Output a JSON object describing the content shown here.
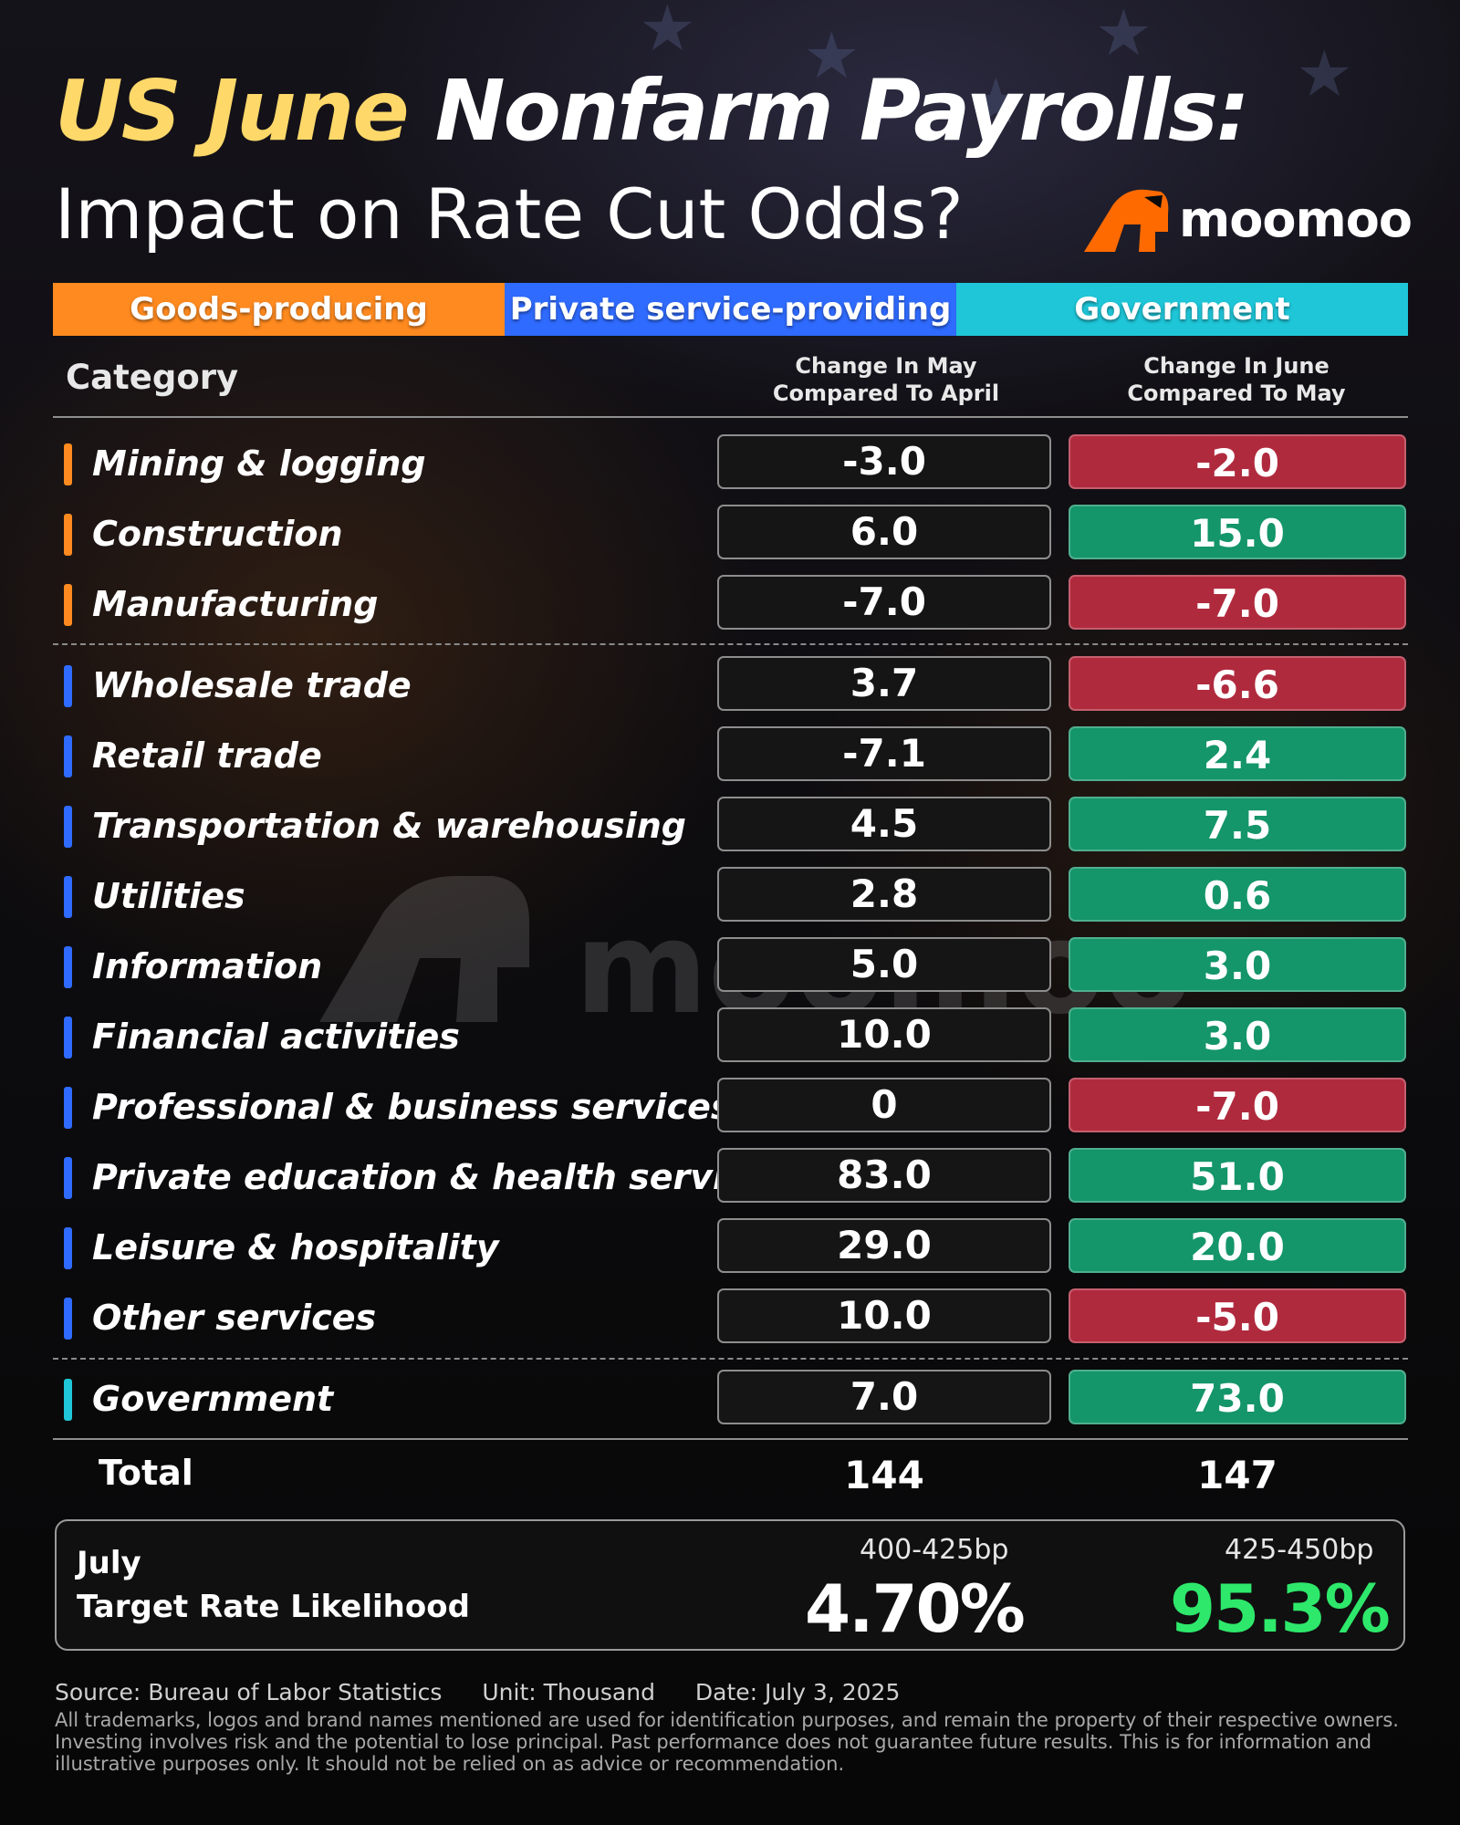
{
  "title": {
    "highlight": "US June",
    "rest": " Nonfarm Payrolls:",
    "subtitle": "Impact on Rate Cut Odds?"
  },
  "brand": {
    "name": "moomoo",
    "color": "#ff6a00"
  },
  "legend": [
    {
      "label": "Goods-producing",
      "color": "#ff8a1f"
    },
    {
      "label": "Private service-providing",
      "color": "#2f6bff"
    },
    {
      "label": "Government",
      "color": "#1ec6d8"
    }
  ],
  "table": {
    "category_header": "Category",
    "col1_header": [
      "Change In May",
      "Compared To April"
    ],
    "col2_header": [
      "Change In June",
      "Compared To May"
    ],
    "rows": [
      {
        "category": "Mining & logging",
        "group": "goods",
        "may": "-3.0",
        "june": "-2.0",
        "june_sign": "neg"
      },
      {
        "category": "Construction",
        "group": "goods",
        "may": "6.0",
        "june": "15.0",
        "june_sign": "pos"
      },
      {
        "category": "Manufacturing",
        "group": "goods",
        "may": "-7.0",
        "june": "-7.0",
        "june_sign": "neg"
      },
      {
        "category": "Wholesale trade",
        "group": "private",
        "may": "3.7",
        "june": "-6.6",
        "june_sign": "neg"
      },
      {
        "category": "Retail trade",
        "group": "private",
        "may": "-7.1",
        "june": "2.4",
        "june_sign": "pos"
      },
      {
        "category": "Transportation & warehousing",
        "group": "private",
        "may": "4.5",
        "june": "7.5",
        "june_sign": "pos"
      },
      {
        "category": "Utilities",
        "group": "private",
        "may": "2.8",
        "june": "0.6",
        "june_sign": "pos"
      },
      {
        "category": "Information",
        "group": "private",
        "may": "5.0",
        "june": "3.0",
        "june_sign": "pos"
      },
      {
        "category": "Financial activities",
        "group": "private",
        "may": "10.0",
        "june": "3.0",
        "june_sign": "pos"
      },
      {
        "category": "Professional & business services",
        "group": "private",
        "may": "0",
        "june": "-7.0",
        "june_sign": "neg"
      },
      {
        "category": "Private education & health services",
        "group": "private",
        "may": "83.0",
        "june": "51.0",
        "june_sign": "pos"
      },
      {
        "category": "Leisure & hospitality",
        "group": "private",
        "may": "29.0",
        "june": "20.0",
        "june_sign": "pos"
      },
      {
        "category": "Other services",
        "group": "private",
        "may": "10.0",
        "june": "-5.0",
        "june_sign": "neg"
      },
      {
        "category": "Government",
        "group": "gov",
        "may": "7.0",
        "june": "73.0",
        "june_sign": "pos"
      }
    ],
    "total": {
      "label": "Total",
      "may": "144",
      "june": "147"
    }
  },
  "rate": {
    "line1": "July",
    "line2": "Target Rate Likelihood",
    "range1": "400-425bp",
    "value1": "4.70%",
    "range2": "425-450bp",
    "value2": "95.3%"
  },
  "footer": {
    "source": "Source: Bureau of Labor Statistics",
    "unit": "Unit: Thousand",
    "date": "Date: July 3, 2025",
    "disclaimer": "All trademarks, logos and brand names mentioned are used for identification purposes, and remain the property of their respective owners. Investing involves risk and the potential to lose principal. Past performance does not guarantee future results. This is for information and illustrative purposes only. It should not be relied on as advice or recommendation."
  },
  "colors": {
    "goods": "#ff8a1f",
    "private": "#2f6bff",
    "gov": "#1ec6d8",
    "neg": "#b02a3e",
    "pos": "#14956a",
    "highlight": "#ffd86a",
    "green_value": "#2ee86b"
  }
}
